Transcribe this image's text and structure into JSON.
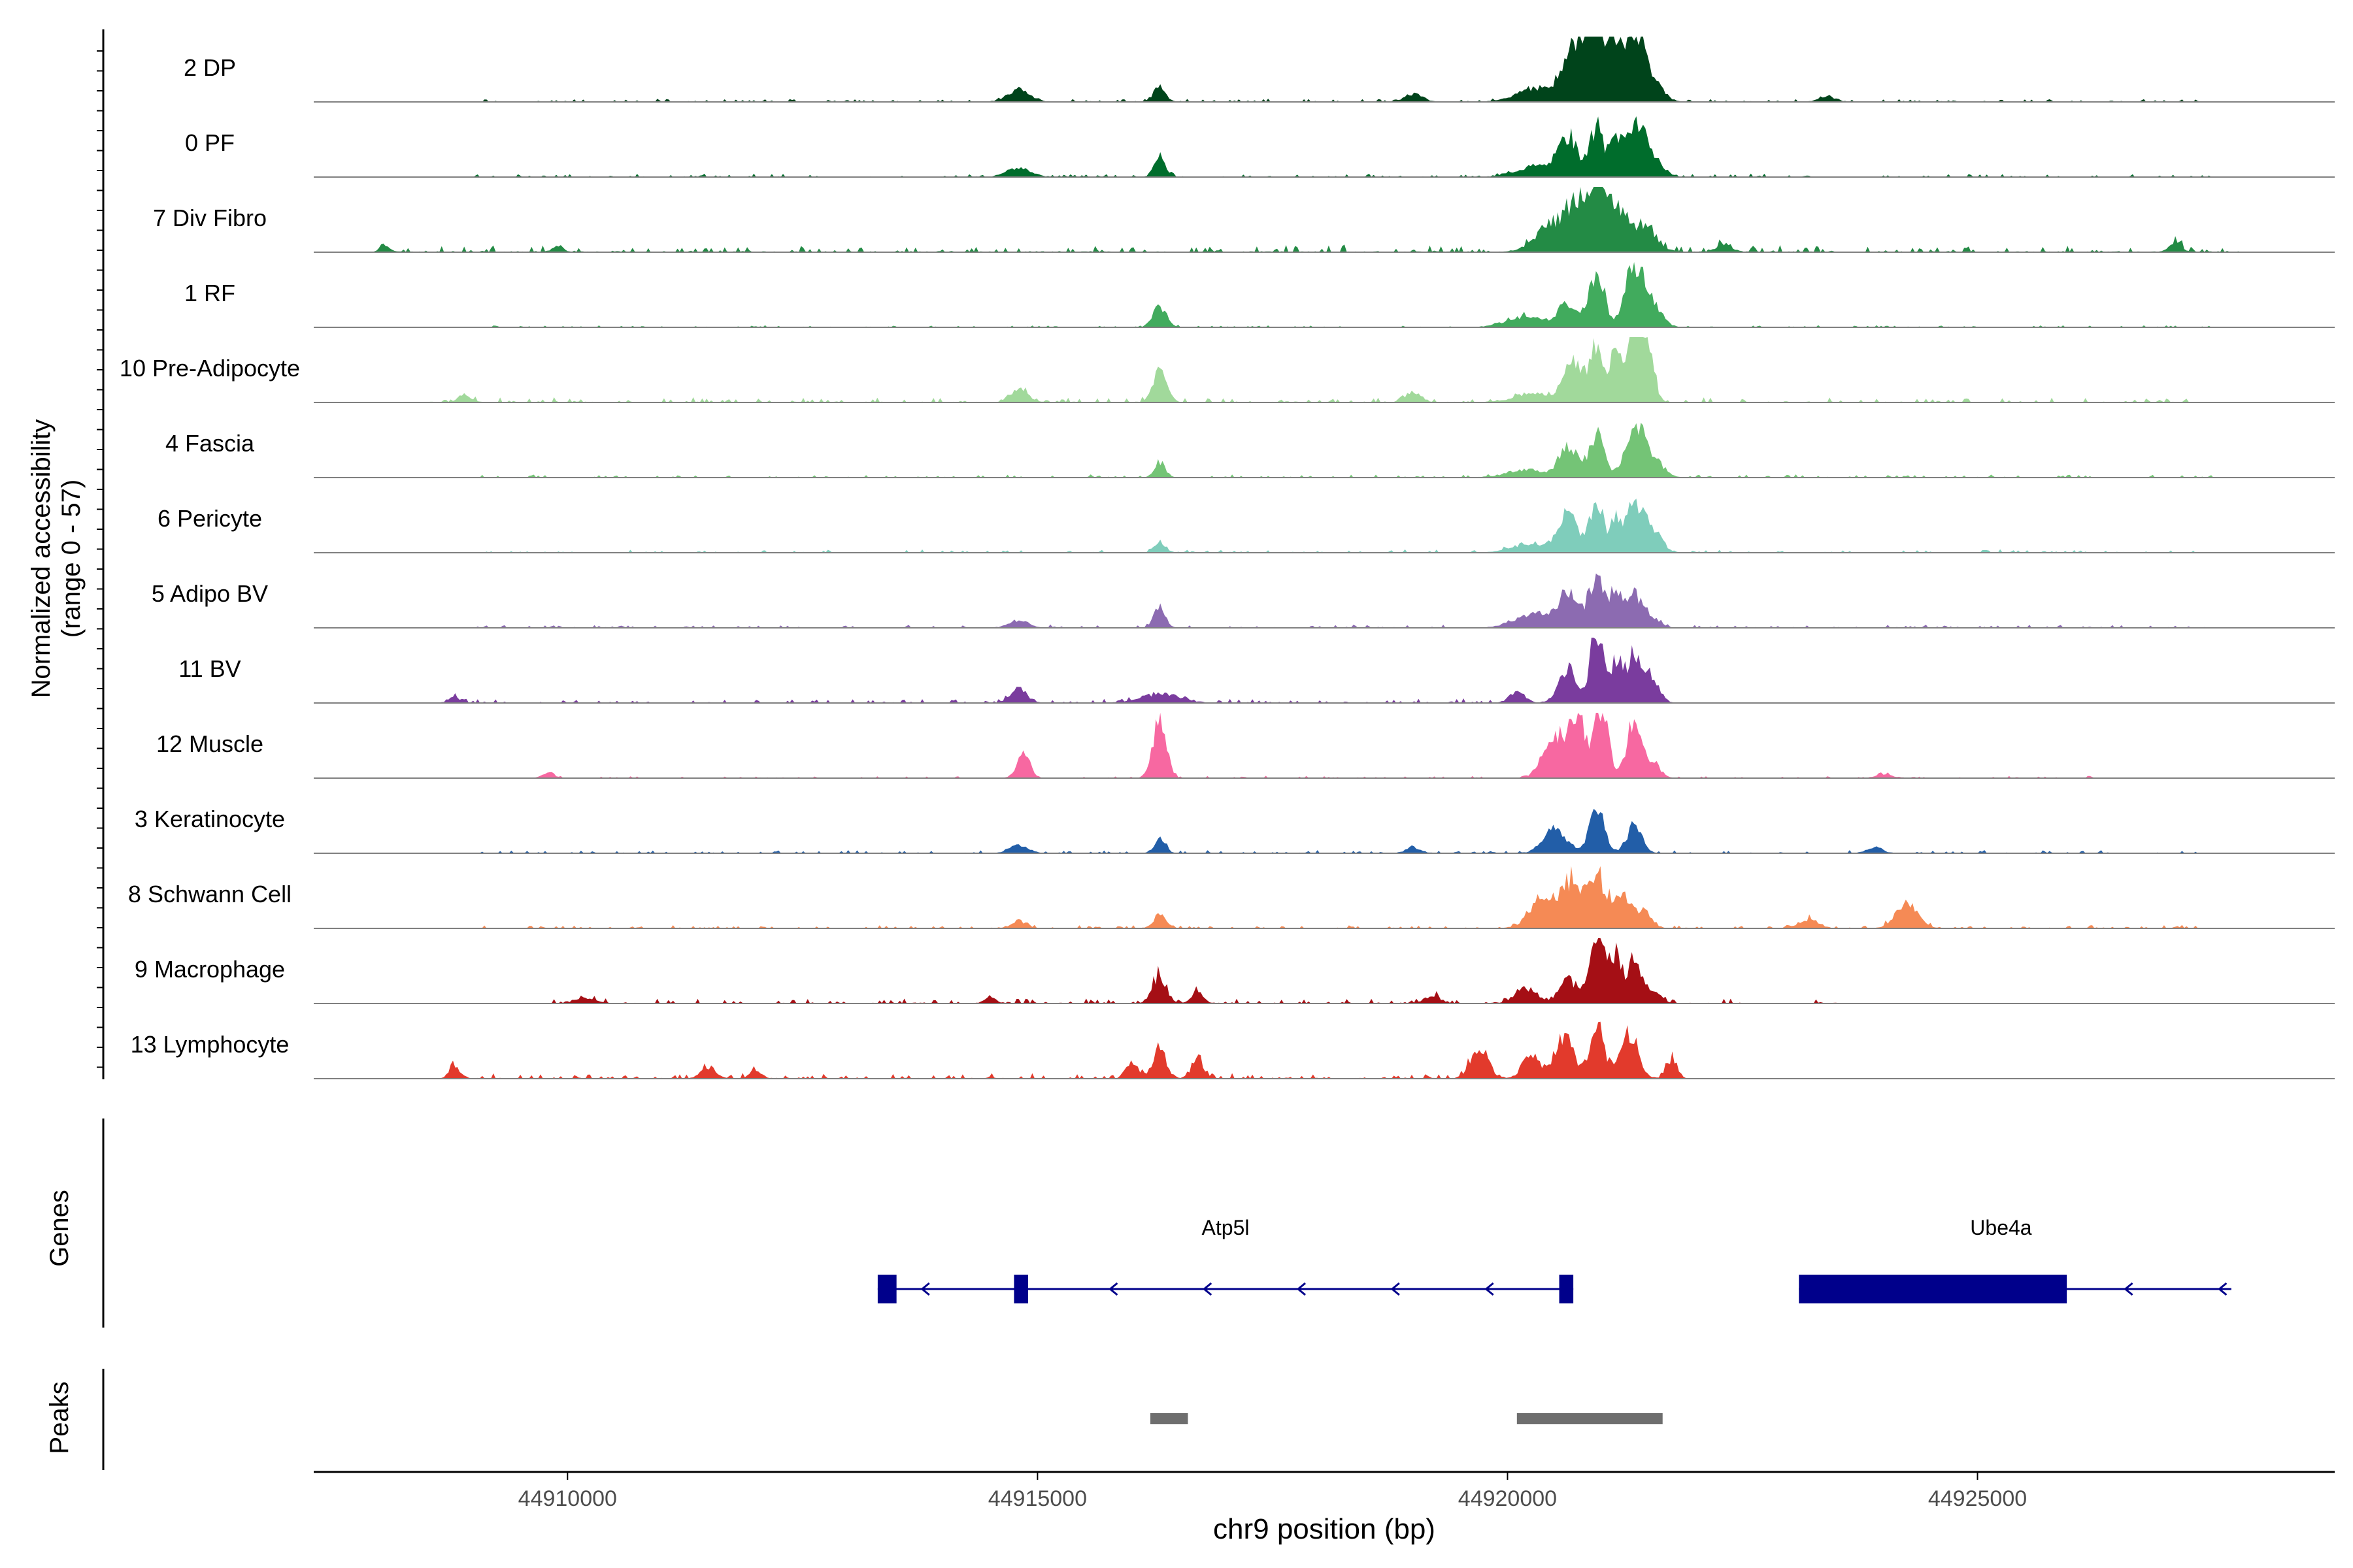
{
  "chart_data": {
    "type": "coverage-tracks",
    "y_axis_label_line1": "Normalized accessibility",
    "y_axis_label_line2": "(range 0 - 57)",
    "xlabel": "chr9 position (bp)",
    "xlim": [
      44907300,
      44928800
    ],
    "x_ticks": [
      {
        "value": 44910000,
        "label": "44910000"
      },
      {
        "value": 44915000,
        "label": "44915000"
      },
      {
        "value": 44920000,
        "label": "44920000"
      },
      {
        "value": 44925000,
        "label": "44925000"
      }
    ],
    "genes_label": "Genes",
    "peaks_label": "Peaks",
    "tracks": [
      {
        "name": "2 DP",
        "color": "#00441b",
        "max": 0.7,
        "noise": 0.03,
        "noise_range": [
          44909000,
          44927500
        ],
        "peaks": [
          [
            44914800,
            0.12,
            120
          ],
          [
            44916300,
            0.18,
            60
          ],
          [
            44919000,
            0.08,
            100
          ],
          [
            44920300,
            0.15,
            200
          ],
          [
            44920650,
            0.35,
            100
          ],
          [
            44920800,
            0.55,
            90
          ],
          [
            44920950,
            0.92,
            70
          ],
          [
            44921150,
            0.7,
            80
          ],
          [
            44921350,
            0.75,
            90
          ],
          [
            44921550,
            0.25,
            100
          ],
          [
            44923400,
            0.06,
            80
          ]
        ]
      },
      {
        "name": "0 PF",
        "color": "#006d2c",
        "max": 0.7,
        "noise": 0.03,
        "noise_range": [
          44909000,
          44927500
        ],
        "peaks": [
          [
            44914800,
            0.1,
            120
          ],
          [
            44916300,
            0.22,
            60
          ],
          [
            44920300,
            0.12,
            200
          ],
          [
            44920650,
            0.42,
            100
          ],
          [
            44920950,
            0.55,
            70
          ],
          [
            44921150,
            0.4,
            60
          ],
          [
            44921350,
            0.6,
            90
          ],
          [
            44921550,
            0.2,
            100
          ]
        ]
      },
      {
        "name": "7 Div Fibro",
        "color": "#238b45",
        "max": 0.7,
        "noise": 0.07,
        "noise_range": [
          44908000,
          44927800
        ],
        "peaks": [
          [
            44908050,
            0.08,
            50
          ],
          [
            44909900,
            0.07,
            50
          ],
          [
            44920500,
            0.3,
            180
          ],
          [
            44920800,
            0.55,
            120
          ],
          [
            44921000,
            0.62,
            80
          ],
          [
            44921200,
            0.45,
            80
          ],
          [
            44921450,
            0.3,
            120
          ],
          [
            44922300,
            0.08,
            80
          ],
          [
            44927100,
            0.1,
            60
          ]
        ]
      },
      {
        "name": "1 RF",
        "color": "#41ab5d",
        "max": 0.7,
        "noise": 0.02,
        "noise_range": [
          44909000,
          44927500
        ],
        "peaks": [
          [
            44916300,
            0.22,
            70
          ],
          [
            44920200,
            0.12,
            200
          ],
          [
            44920650,
            0.25,
            100
          ],
          [
            44920950,
            0.6,
            80
          ],
          [
            44921350,
            0.68,
            100
          ],
          [
            44921550,
            0.2,
            100
          ]
        ]
      },
      {
        "name": "10 Pre-Adipocyte",
        "color": "#a1d99b",
        "max": 0.7,
        "noise": 0.05,
        "noise_range": [
          44908500,
          44927300
        ],
        "peaks": [
          [
            44908900,
            0.08,
            60
          ],
          [
            44914800,
            0.15,
            90
          ],
          [
            44916300,
            0.33,
            70
          ],
          [
            44919000,
            0.1,
            80
          ],
          [
            44920300,
            0.1,
            200
          ],
          [
            44920700,
            0.42,
            100
          ],
          [
            44920950,
            0.65,
            70
          ],
          [
            44921150,
            0.55,
            60
          ],
          [
            44921350,
            0.8,
            80
          ],
          [
            44921500,
            0.6,
            60
          ]
        ]
      },
      {
        "name": "4 Fascia",
        "color": "#74c476",
        "max": 0.7,
        "noise": 0.03,
        "noise_range": [
          44909000,
          44927500
        ],
        "peaks": [
          [
            44916300,
            0.15,
            60
          ],
          [
            44920200,
            0.08,
            200
          ],
          [
            44920650,
            0.33,
            100
          ],
          [
            44920950,
            0.45,
            80
          ],
          [
            44921350,
            0.55,
            100
          ],
          [
            44921550,
            0.2,
            100
          ]
        ]
      },
      {
        "name": "6 Pericyte",
        "color": "#7fcdbb",
        "max": 0.7,
        "noise": 0.03,
        "noise_range": [
          44909000,
          44927500
        ],
        "peaks": [
          [
            44916300,
            0.12,
            60
          ],
          [
            44920250,
            0.1,
            200
          ],
          [
            44920650,
            0.42,
            100
          ],
          [
            44920950,
            0.55,
            70
          ],
          [
            44921150,
            0.3,
            60
          ],
          [
            44921350,
            0.5,
            100
          ],
          [
            44921550,
            0.2,
            100
          ]
        ]
      },
      {
        "name": "5 Adipo BV",
        "color": "#8c6bb1",
        "max": 0.7,
        "noise": 0.03,
        "noise_range": [
          44909000,
          44927500
        ],
        "peaks": [
          [
            44914800,
            0.08,
            100
          ],
          [
            44916300,
            0.22,
            60
          ],
          [
            44920300,
            0.15,
            200
          ],
          [
            44920650,
            0.38,
            100
          ],
          [
            44920950,
            0.58,
            80
          ],
          [
            44921150,
            0.4,
            60
          ],
          [
            44921350,
            0.35,
            80
          ],
          [
            44921550,
            0.1,
            80
          ]
        ]
      },
      {
        "name": "11 BV",
        "color": "#7a3c9e",
        "max": 0.7,
        "noise": 0.04,
        "noise_range": [
          44908600,
          44921600
        ],
        "peaks": [
          [
            44908800,
            0.06,
            60
          ],
          [
            44914800,
            0.18,
            80
          ],
          [
            44916300,
            0.1,
            200
          ],
          [
            44920100,
            0.12,
            80
          ],
          [
            44920650,
            0.35,
            100
          ],
          [
            44920950,
            0.75,
            70
          ],
          [
            44921150,
            0.42,
            60
          ],
          [
            44921350,
            0.5,
            90
          ],
          [
            44921550,
            0.2,
            80
          ]
        ]
      },
      {
        "name": "12 Muscle",
        "color": "#f768a1",
        "max": 0.7,
        "noise": 0.02,
        "noise_range": [
          44909500,
          44926500
        ],
        "peaks": [
          [
            44909800,
            0.06,
            60
          ],
          [
            44914850,
            0.25,
            70
          ],
          [
            44916300,
            0.65,
            70
          ],
          [
            44920500,
            0.45,
            120
          ],
          [
            44920750,
            0.6,
            90
          ],
          [
            44921000,
            0.78,
            70
          ],
          [
            44921350,
            0.6,
            80
          ],
          [
            44921550,
            0.15,
            80
          ],
          [
            44924000,
            0.04,
            80
          ]
        ]
      },
      {
        "name": "3 Keratinocyte",
        "color": "#225ea8",
        "max": 0.7,
        "noise": 0.03,
        "noise_range": [
          44909000,
          44927500
        ],
        "peaks": [
          [
            44914800,
            0.08,
            100
          ],
          [
            44916300,
            0.15,
            60
          ],
          [
            44919000,
            0.06,
            80
          ],
          [
            44920500,
            0.25,
            120
          ],
          [
            44920950,
            0.48,
            80
          ],
          [
            44921350,
            0.3,
            80
          ],
          [
            44923900,
            0.06,
            80
          ]
        ]
      },
      {
        "name": "8 Schwann Cell",
        "color": "#f58a55",
        "max": 0.7,
        "noise": 0.03,
        "noise_range": [
          44909000,
          44927500
        ],
        "peaks": [
          [
            44914800,
            0.08,
            80
          ],
          [
            44916300,
            0.15,
            60
          ],
          [
            44920400,
            0.35,
            150
          ],
          [
            44920700,
            0.48,
            100
          ],
          [
            44920950,
            0.58,
            80
          ],
          [
            44921200,
            0.42,
            90
          ],
          [
            44921450,
            0.2,
            80
          ],
          [
            44923200,
            0.1,
            100
          ],
          [
            44924250,
            0.25,
            120
          ]
        ]
      },
      {
        "name": "9 Macrophage",
        "color": "#a50f15",
        "max": 0.7,
        "noise": 0.05,
        "noise_range": [
          44909800,
          44923500
        ],
        "peaks": [
          [
            44910200,
            0.06,
            100
          ],
          [
            44914500,
            0.06,
            60
          ],
          [
            44916300,
            0.3,
            70
          ],
          [
            44916700,
            0.12,
            60
          ],
          [
            44919200,
            0.08,
            80
          ],
          [
            44920200,
            0.15,
            120
          ],
          [
            44920650,
            0.25,
            100
          ],
          [
            44920950,
            0.85,
            70
          ],
          [
            44921150,
            0.55,
            60
          ],
          [
            44921350,
            0.42,
            80
          ],
          [
            44921550,
            0.12,
            80
          ]
        ]
      },
      {
        "name": "13 Lymphocyte",
        "color": "#e23a2c",
        "max": 0.7,
        "noise": 0.05,
        "noise_range": [
          44908700,
          44921800
        ],
        "peaks": [
          [
            44908800,
            0.12,
            60
          ],
          [
            44911500,
            0.12,
            80
          ],
          [
            44912000,
            0.1,
            60
          ],
          [
            44916000,
            0.18,
            60
          ],
          [
            44916300,
            0.32,
            70
          ],
          [
            44916700,
            0.22,
            60
          ],
          [
            44919700,
            0.35,
            90
          ],
          [
            44920250,
            0.25,
            90
          ],
          [
            44920600,
            0.45,
            100
          ],
          [
            44920950,
            0.55,
            80
          ],
          [
            44921300,
            0.5,
            90
          ],
          [
            44921750,
            0.2,
            60
          ]
        ]
      }
    ],
    "genes": [
      {
        "name": "Atp5l",
        "start": 44913300,
        "end": 44920700,
        "strand": "-",
        "exons": [
          [
            44913300,
            44913500
          ],
          [
            44914750,
            44914900
          ],
          [
            44920550,
            44920700
          ]
        ],
        "label_position": 44917000
      },
      {
        "name": "Ube4a",
        "start": 44923100,
        "end": 44927700,
        "strand": "-",
        "exons": [
          [
            44923100,
            44925950
          ]
        ],
        "label_position": 44925250
      }
    ],
    "peaks": [
      {
        "start": 44916200,
        "end": 44916600
      },
      {
        "start": 44920100,
        "end": 44921650
      }
    ]
  }
}
